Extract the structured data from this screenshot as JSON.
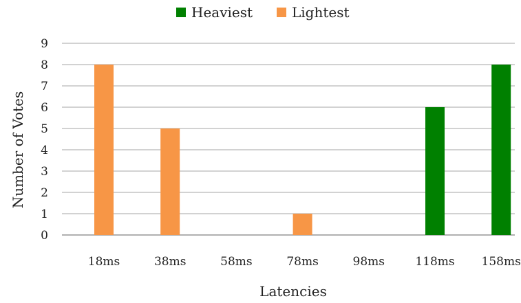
{
  "chart_data": {
    "type": "bar",
    "categories": [
      "18ms",
      "38ms",
      "58ms",
      "78ms",
      "98ms",
      "118ms",
      "158ms"
    ],
    "series": [
      {
        "name": "Heaviest",
        "color": "#008000",
        "values": [
          0,
          0,
          0,
          0,
          0,
          6,
          8
        ]
      },
      {
        "name": "Lightest",
        "color": "#F79646",
        "values": [
          8,
          5,
          0,
          1,
          0,
          0,
          0
        ]
      }
    ],
    "title": "",
    "xlabel": "Latencies",
    "ylabel": "Number of Votes",
    "ylim": [
      0,
      9
    ],
    "yticks": [
      0,
      1,
      2,
      3,
      4,
      5,
      6,
      7,
      8,
      9
    ],
    "grid": true,
    "legend": "top-center"
  }
}
